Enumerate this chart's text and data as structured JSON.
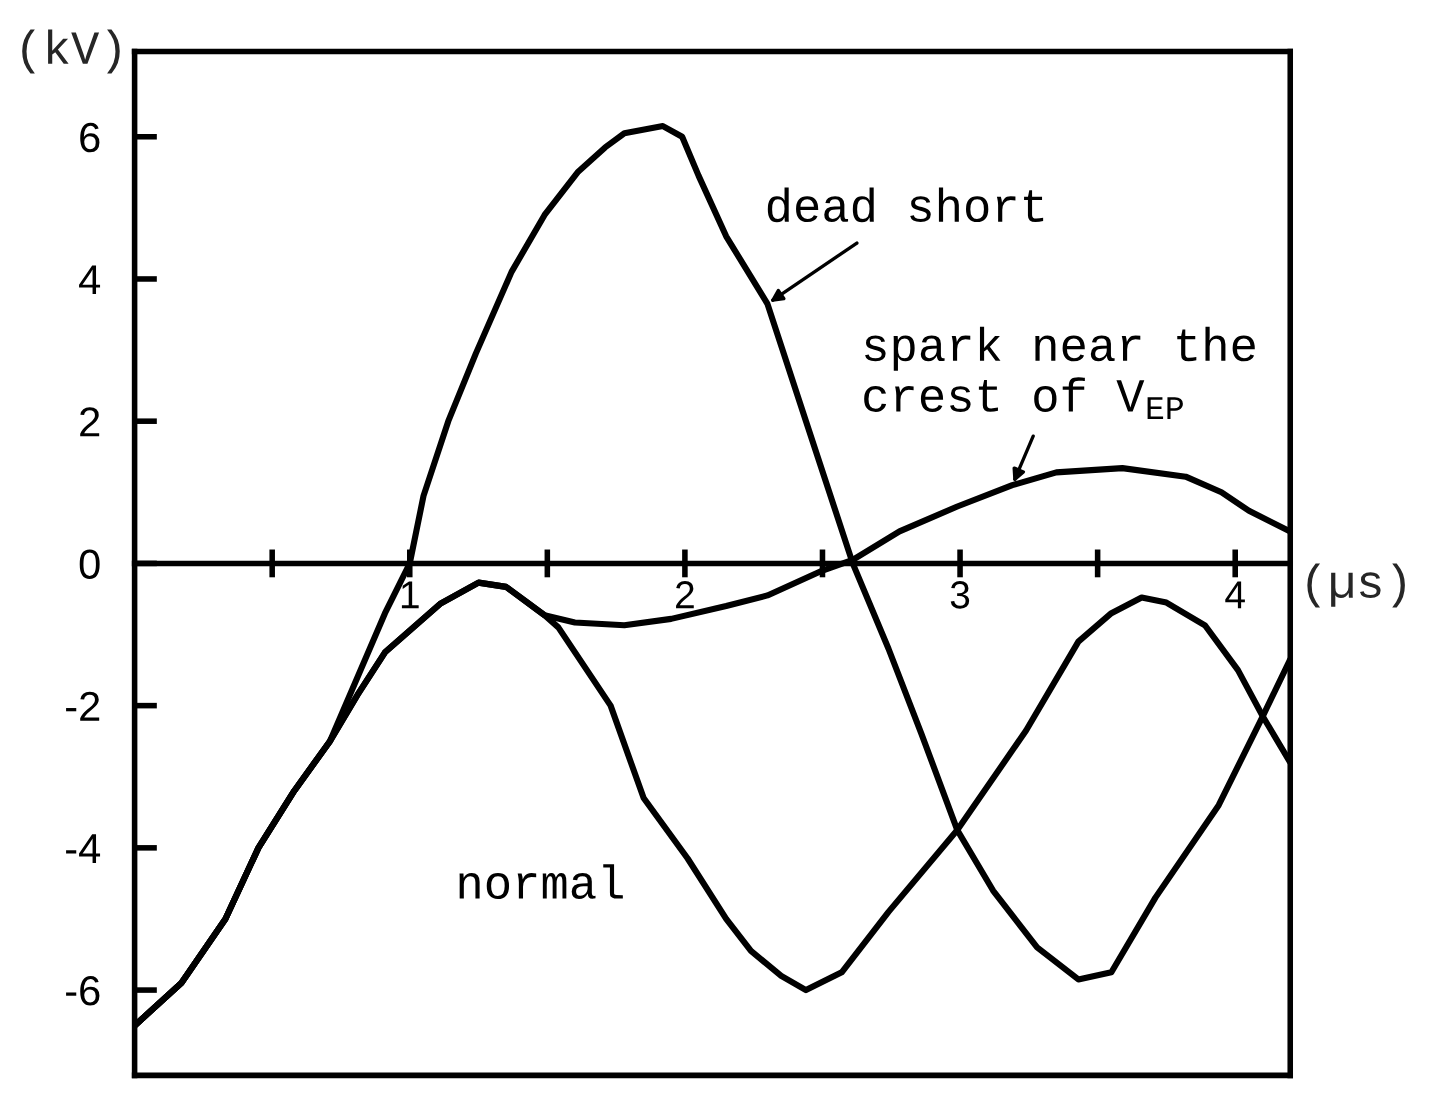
{
  "chart_data": {
    "type": "line",
    "xlabel": "(µs)",
    "ylabel": "(kV)",
    "xlim": [
      0,
      4.2
    ],
    "xticks": [
      {
        "value": 0.5,
        "label": null
      },
      1,
      {
        "value": 1.5,
        "label": null
      },
      2,
      {
        "value": 2.5,
        "label": null
      },
      3,
      {
        "value": 3.5,
        "label": null
      },
      4
    ],
    "ylim": [
      -7.2,
      7.2
    ],
    "yticks": [
      -6,
      -4,
      -2,
      0,
      2,
      4,
      6
    ],
    "series": [
      {
        "name": "dead short",
        "color": "#000000",
        "x": [
          0,
          0.17,
          0.33,
          0.45,
          0.58,
          0.71,
          0.81,
          0.91,
          1.0,
          1.05,
          1.14,
          1.24,
          1.37,
          1.49,
          1.61,
          1.71,
          1.78,
          1.92,
          1.99,
          2.05,
          2.15,
          2.3,
          2.44,
          2.61,
          2.74,
          2.86,
          2.99,
          3.12,
          3.28,
          3.43,
          3.55,
          3.71,
          3.94,
          4.1,
          4.2
        ],
        "values": [
          -6.5,
          -5.9,
          -5.0,
          -4.0,
          -3.2,
          -2.5,
          -1.6,
          -0.7,
          0,
          0.95,
          2.0,
          2.95,
          4.1,
          4.9,
          5.5,
          5.85,
          6.05,
          6.15,
          6.0,
          5.45,
          4.6,
          3.65,
          2.0,
          0,
          -1.2,
          -2.4,
          -3.75,
          -4.6,
          -5.4,
          -5.85,
          -5.75,
          -4.7,
          -3.4,
          -2.15,
          -1.35
        ]
      },
      {
        "name": "normal",
        "color": "#000000",
        "x": [
          0,
          0.17,
          0.33,
          0.45,
          0.58,
          0.71,
          0.81,
          0.91,
          1.11,
          1.25,
          1.35,
          1.49,
          1.54,
          1.73,
          1.85,
          2.01,
          2.15,
          2.24,
          2.35,
          2.44,
          2.57,
          2.74,
          2.99,
          3.24,
          3.43,
          3.55,
          3.66,
          3.75,
          3.89,
          4.01,
          4.1,
          4.2
        ],
        "values": [
          -6.5,
          -5.9,
          -5.0,
          -4.0,
          -3.2,
          -2.5,
          -1.85,
          -1.25,
          -0.57,
          -0.27,
          -0.33,
          -0.73,
          -0.9,
          -2.0,
          -3.3,
          -4.15,
          -5.0,
          -5.45,
          -5.8,
          -6.0,
          -5.75,
          -4.9,
          -3.75,
          -2.35,
          -1.1,
          -0.7,
          -0.48,
          -0.55,
          -0.87,
          -1.5,
          -2.15,
          -2.8
        ]
      },
      {
        "name": "spark near the\ncrest of V$_{EP}$",
        "color": "#000000",
        "x": [
          0,
          0.17,
          0.33,
          0.45,
          0.58,
          0.71,
          0.81,
          0.91,
          1.11,
          1.25,
          1.35,
          1.49,
          1.6,
          1.78,
          1.95,
          2.15,
          2.3,
          2.5,
          2.61,
          2.78,
          2.99,
          3.19,
          3.35,
          3.59,
          3.82,
          3.95,
          4.05,
          4.2
        ],
        "values": [
          -6.5,
          -5.9,
          -5.0,
          -4.0,
          -3.2,
          -2.5,
          -1.85,
          -1.25,
          -0.57,
          -0.27,
          -0.33,
          -0.73,
          -0.83,
          -0.87,
          -0.78,
          -0.6,
          -0.45,
          -0.1,
          0.05,
          0.45,
          0.8,
          1.1,
          1.28,
          1.34,
          1.22,
          1.0,
          0.74,
          0.45
        ]
      }
    ]
  }
}
